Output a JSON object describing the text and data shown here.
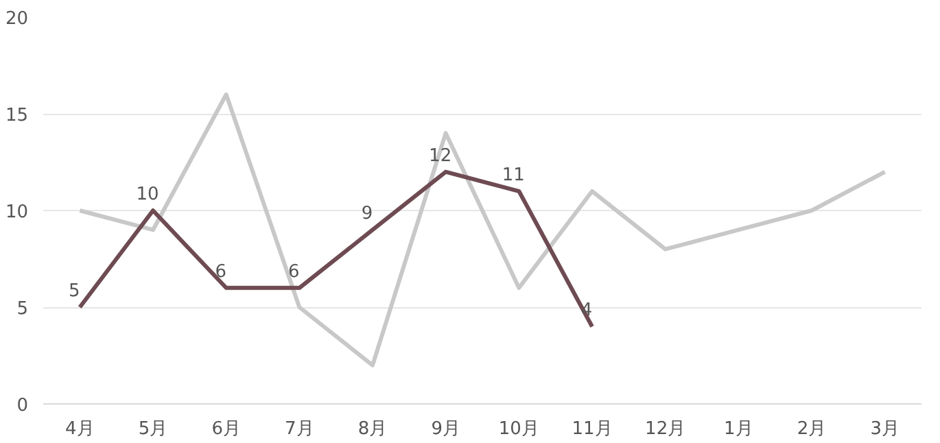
{
  "chart_data": {
    "type": "line",
    "categories": [
      "4月",
      "5月",
      "6月",
      "7月",
      "8月",
      "9月",
      "10月",
      "11月",
      "12月",
      "1月",
      "2月",
      "3月"
    ],
    "ylim": [
      0,
      20
    ],
    "yticks": [
      0,
      5,
      10,
      15,
      20
    ],
    "grid": "y",
    "marker": "none",
    "line_style": "solid",
    "series": [
      {
        "color": "#c8c8c8",
        "values": [
          10,
          9,
          16,
          5,
          2,
          14,
          6,
          11,
          8,
          9,
          10,
          12
        ]
      },
      {
        "color": "#6e4b52",
        "values": [
          5,
          10,
          6,
          6,
          9,
          12,
          11,
          4,
          null,
          null,
          null,
          null
        ],
        "value_labels": [
          "5",
          "10",
          "6",
          "6",
          "9",
          "12",
          "11",
          "4",
          null,
          null,
          null,
          null
        ]
      }
    ]
  }
}
